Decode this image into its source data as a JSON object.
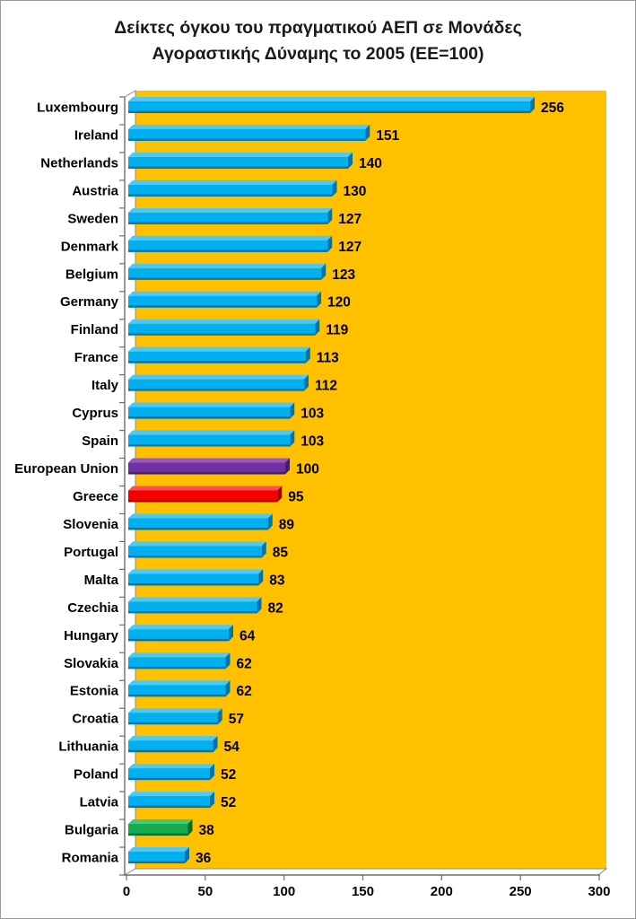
{
  "title_lines": [
    "Δείκτες όγκου του πραγματικού ΑΕΠ σε Μονάδες",
    "Αγοραστικής Δύναμης το 2005 (ΕΕ=100)"
  ],
  "chart_data": {
    "type": "bar",
    "orientation": "horizontal",
    "title": "Δείκτες όγκου του πραγματικού ΑΕΠ σε Μονάδες Αγοραστικής Δύναμης το 2005 (ΕΕ=100)",
    "categories": [
      "Luxembourg",
      "Ireland",
      "Netherlands",
      "Austria",
      "Sweden",
      "Denmark",
      "Belgium",
      "Germany",
      "Finland",
      "France",
      "Italy",
      "Cyprus",
      "Spain",
      "European Union",
      "Greece",
      "Slovenia",
      "Portugal",
      "Malta",
      "Czechia",
      "Hungary",
      "Slovakia",
      "Estonia",
      "Croatia",
      "Lithuania",
      "Poland",
      "Latvia",
      "Bulgaria",
      "Romania"
    ],
    "values": [
      256,
      151,
      140,
      130,
      127,
      127,
      123,
      120,
      119,
      113,
      112,
      103,
      103,
      100,
      95,
      89,
      85,
      83,
      82,
      64,
      62,
      62,
      57,
      54,
      52,
      52,
      38,
      36
    ],
    "bar_color_names": [
      "cyan",
      "cyan",
      "cyan",
      "cyan",
      "cyan",
      "cyan",
      "cyan",
      "cyan",
      "cyan",
      "cyan",
      "cyan",
      "cyan",
      "cyan",
      "purple",
      "red",
      "cyan",
      "cyan",
      "cyan",
      "cyan",
      "cyan",
      "cyan",
      "cyan",
      "cyan",
      "cyan",
      "cyan",
      "cyan",
      "green",
      "cyan"
    ],
    "palette": {
      "cyan": {
        "main": "#00B0F0",
        "light": "#4DC9F6",
        "dark": "#0076A8"
      },
      "purple": {
        "main": "#7030A0",
        "light": "#9657C4",
        "dark": "#471E66"
      },
      "red": {
        "main": "#F40000",
        "light": "#FF5050",
        "dark": "#9E0000"
      },
      "green": {
        "main": "#12AD50",
        "light": "#43C97B",
        "dark": "#076B31"
      }
    },
    "plot_background": "#FFC000",
    "value_labels_shown": true,
    "xlim": [
      0,
      300
    ],
    "x_ticks": [
      "0",
      "50",
      "100",
      "150",
      "200",
      "250",
      "300"
    ],
    "grid": false,
    "legend": "none"
  }
}
